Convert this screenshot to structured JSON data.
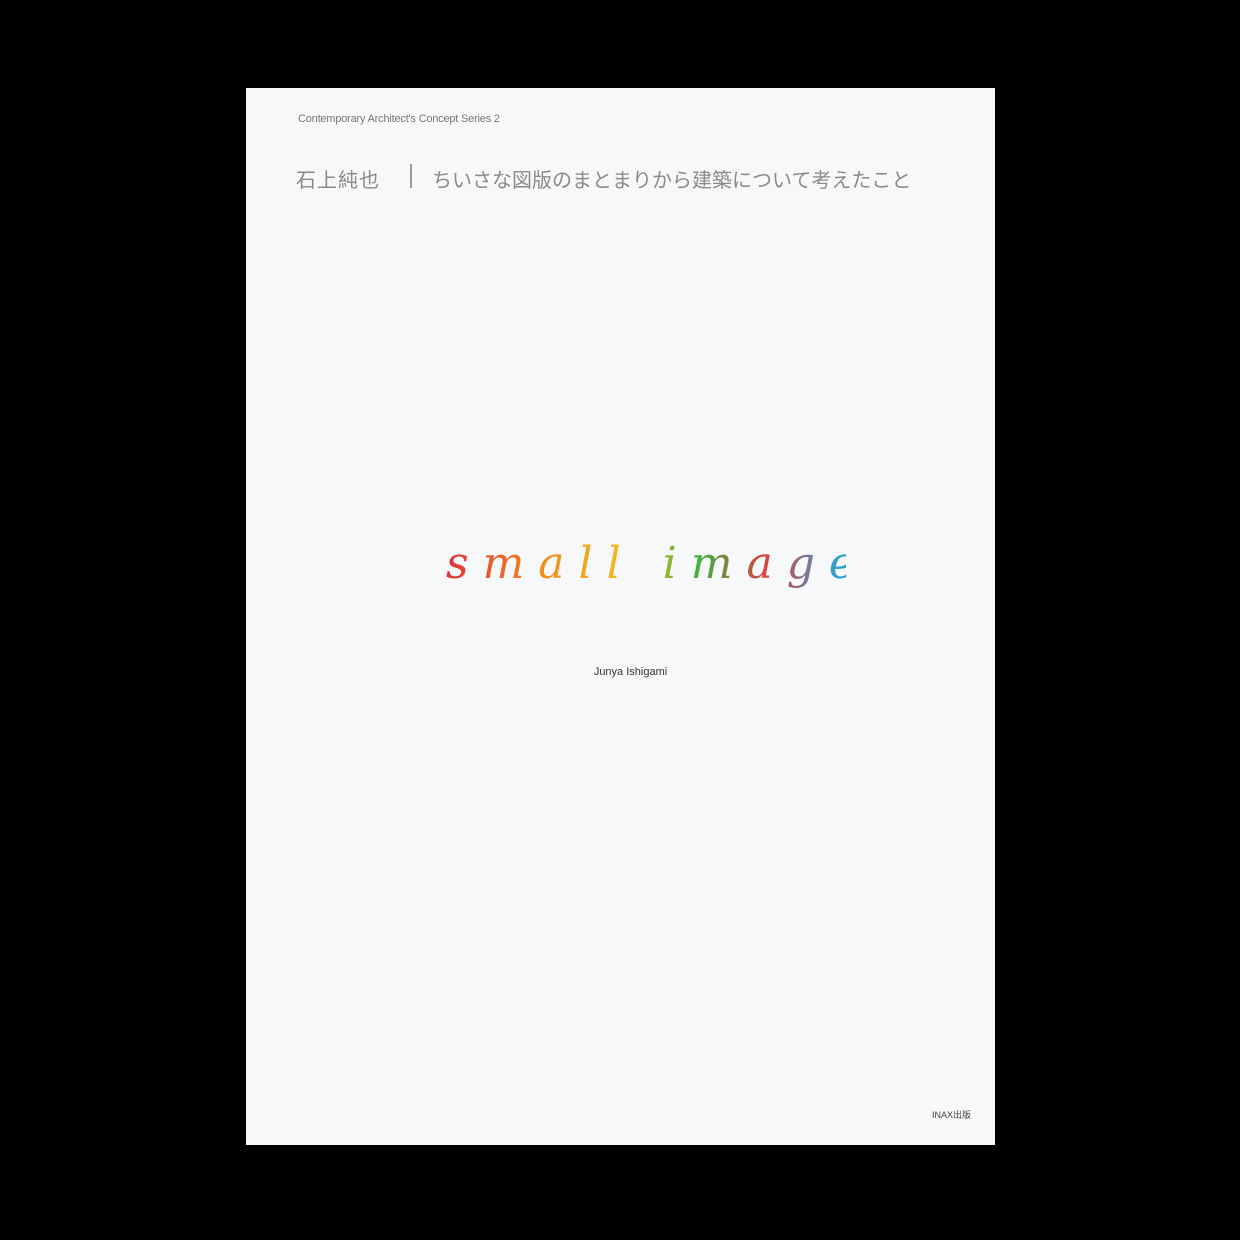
{
  "cover": {
    "series": "Contemporary Architect's Concept Series 2",
    "author_ja": "石上純也",
    "subtitle_ja": "ちいさな図版のまとまりから建築について考えたこと",
    "title": "small images",
    "author": "Junya Ishigami",
    "publisher": "INAX出版"
  }
}
